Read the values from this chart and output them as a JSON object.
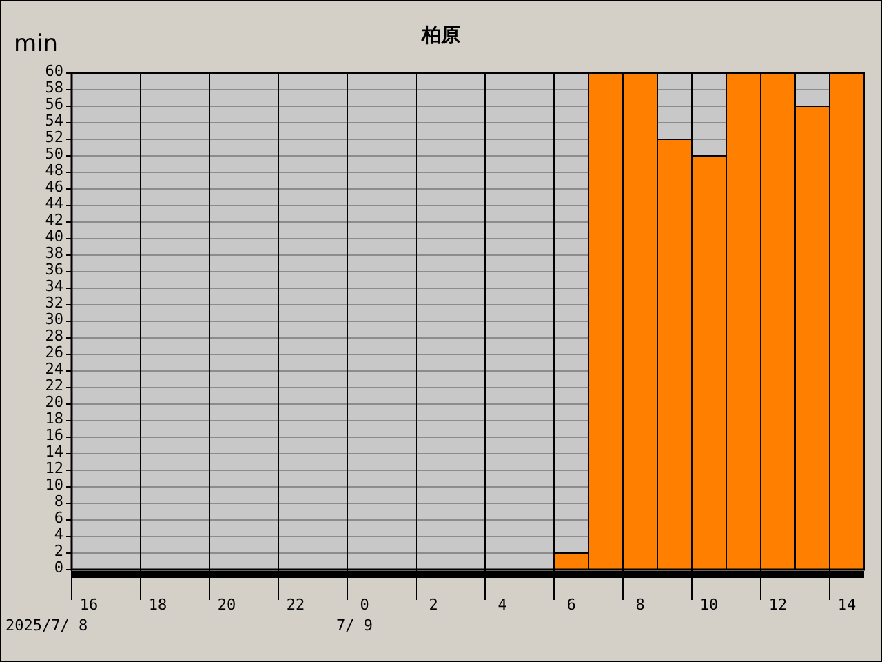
{
  "chart_data": {
    "type": "bar",
    "title": "柏原",
    "ylabel": "min",
    "categories": [
      "16",
      null,
      "18",
      null,
      "20",
      null,
      "22",
      null,
      "0",
      null,
      "2",
      null,
      "4",
      null,
      "6",
      null,
      "8",
      null,
      "10",
      null,
      "12",
      null,
      "14"
    ],
    "values": [
      0,
      0,
      0,
      0,
      0,
      0,
      0,
      0,
      0,
      0,
      0,
      0,
      0,
      0,
      2,
      60,
      60,
      52,
      50,
      60,
      60,
      56,
      60
    ],
    "color": "#ff8000",
    "ylim": [
      0,
      60
    ],
    "yticks": [
      0,
      2,
      4,
      6,
      8,
      10,
      12,
      14,
      16,
      18,
      20,
      22,
      24,
      26,
      28,
      30,
      32,
      34,
      36,
      38,
      40,
      42,
      44,
      46,
      48,
      50,
      52,
      54,
      56,
      58,
      60
    ],
    "grid": true,
    "annotations": [
      "2025/7/ 8",
      "7/ 9"
    ]
  }
}
